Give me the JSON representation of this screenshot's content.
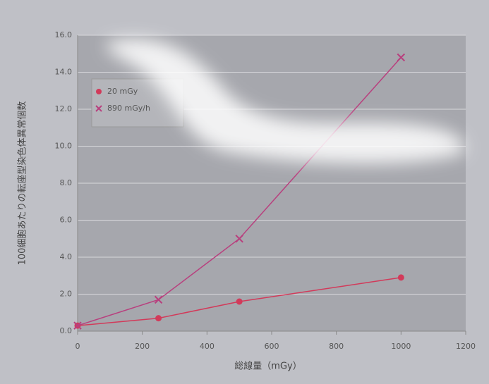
{
  "chart_data": {
    "type": "scatter",
    "x_label": "総線量（mGy）",
    "y_label": "100細胞あたりの転座型染色体異常個数",
    "x": [
      0,
      250,
      500,
      1000
    ],
    "series": [
      {
        "name": "20 mGy",
        "color": "#d23a5a",
        "marker": "circle",
        "values": [
          0.3,
          0.7,
          1.6,
          2.9
        ]
      },
      {
        "name": "890 mGy/h",
        "color": "#b8407e",
        "marker": "x",
        "values": [
          0.3,
          1.7,
          5.0,
          14.8
        ]
      }
    ],
    "xlim": [
      0,
      1200
    ],
    "xticks": [
      0,
      200,
      400,
      600,
      800,
      1000,
      1200
    ],
    "ylim": [
      0,
      16
    ],
    "yticks": [
      {
        "value": 0,
        "label": "0.0"
      },
      {
        "value": 2,
        "label": "2.0"
      },
      {
        "value": 4,
        "label": "4.0"
      },
      {
        "value": 6,
        "label": "6.0"
      },
      {
        "value": 8,
        "label": "8.0"
      },
      {
        "value": 10,
        "label": "10.0"
      },
      {
        "value": 12,
        "label": "12.0"
      },
      {
        "value": 14,
        "label": "14.0"
      },
      {
        "value": 16,
        "label": "16.0"
      }
    ],
    "grid": true,
    "legend": "top-left"
  }
}
